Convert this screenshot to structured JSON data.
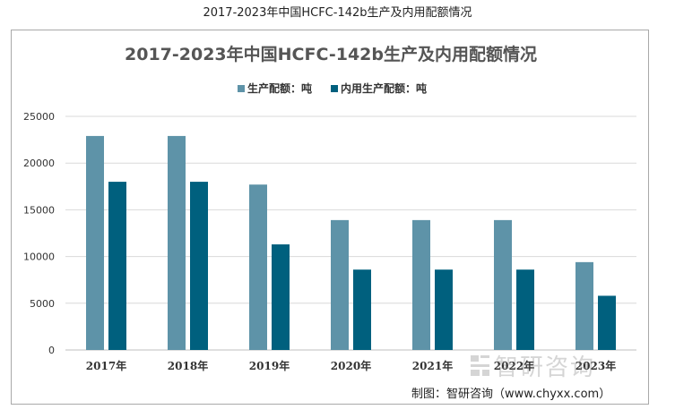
{
  "page": {
    "title": "2017-2023年中国HCFC-142b生产及内用配额情况",
    "credit": "制图：智研咨询（www.chyxx.com）",
    "watermark": "智研咨询"
  },
  "colors": {
    "series1": "#5e93a8",
    "series2": "#00607e",
    "grid": "#d9d9d9",
    "axis": "#bfbfbf"
  },
  "chart_data": {
    "type": "bar",
    "title": "2017-2023年中国HCFC-142b生产及内用配额情况",
    "categories": [
      "2017年",
      "2018年",
      "2019年",
      "2020年",
      "2021年",
      "2022年",
      "2023年"
    ],
    "series": [
      {
        "name": "生产配额：吨",
        "values": [
          22900,
          22900,
          17700,
          13900,
          13900,
          13900,
          9400
        ]
      },
      {
        "name": "内用生产配额：吨",
        "values": [
          18000,
          18000,
          11300,
          8600,
          8600,
          8600,
          5800
        ]
      }
    ],
    "yticks": [
      "0",
      "5000",
      "10000",
      "15000",
      "20000",
      "25000"
    ],
    "ylim": [
      0,
      25000
    ],
    "xlabel": "",
    "ylabel": "",
    "grid": true,
    "legend_position": "top-center"
  }
}
